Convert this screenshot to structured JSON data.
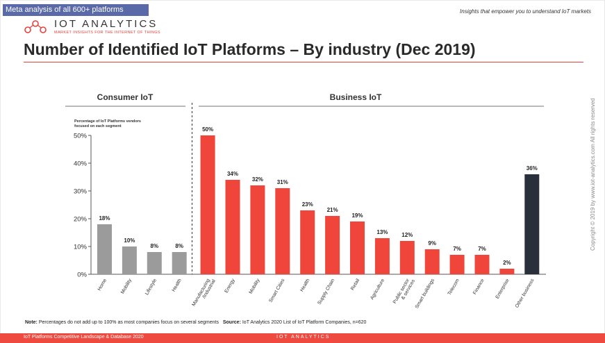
{
  "header": {
    "meta_tag": "Meta analysis of all 600+ platforms",
    "tagline": "Insights that empower you to understand IoT markets",
    "logo_word": "IOT ANALYTICS",
    "logo_sub": "MARKET INSIGHTS FOR THE INTERNET OF THINGS",
    "title": "Number of Identified IoT Platforms – By industry (Dec 2019)"
  },
  "side_copyright": "Copyright © 2019 by www.iot-analytics.com All rights reserved",
  "note": {
    "label": "Note:",
    "text": " Percentages do not add up to 100% as most companies focus on several segments",
    "source_label": "Source:",
    "source_text": " IoT Analytics 2020 List of IoT Platform Companies,  n=620"
  },
  "footer": {
    "text": "IoT Platforms Competitive Landscape & Database 2020",
    "logo": "IOT ANALYTICS"
  },
  "colors": {
    "consumer": "#9b9b9b",
    "business": "#f0453b",
    "other": "#2a2f3c",
    "accent": "#e8403c"
  },
  "chart_data": {
    "type": "bar",
    "title": "Number of Identified IoT Platforms – By industry (Dec 2019)",
    "ylabel": "Percentage of IoT Platforms vendors focused on each segment",
    "ylim": [
      0,
      50
    ],
    "yticks": [
      "0%",
      "10%",
      "20%",
      "30%",
      "40%",
      "50%"
    ],
    "groups": [
      {
        "name": "Consumer IoT",
        "categories": [
          "Home",
          "Mobility",
          "Lifestyle",
          "Health"
        ]
      },
      {
        "name": "Business IoT",
        "categories": [
          "Manufacturing /Industrial",
          "Energy",
          "Mobility",
          "Smart Cities",
          "Health",
          "Supply Chain",
          "Retail",
          "Agriculture",
          "Public sector & services",
          "Smart buildings",
          "Telecom",
          "Finance",
          "Enterprise",
          "Other business"
        ]
      }
    ],
    "categories": [
      "Home",
      "Mobility",
      "Lifestyle",
      "Health",
      "Manufacturing /Industrial",
      "Energy",
      "Mobility",
      "Smart Cities",
      "Health",
      "Supply Chain",
      "Retail",
      "Agriculture",
      "Public sector & services",
      "Smart buildings",
      "Telecom",
      "Finance",
      "Enterprise",
      "Other business"
    ],
    "values": [
      18,
      10,
      8,
      8,
      50,
      34,
      32,
      31,
      23,
      21,
      19,
      13,
      12,
      9,
      7,
      7,
      2,
      36
    ],
    "labels": [
      "18%",
      "10%",
      "8%",
      "8%",
      "50%",
      "34%",
      "32%",
      "31%",
      "23%",
      "21%",
      "19%",
      "13%",
      "12%",
      "9%",
      "7%",
      "7%",
      "2%",
      "36%"
    ],
    "segment": [
      "consumer",
      "consumer",
      "consumer",
      "consumer",
      "business",
      "business",
      "business",
      "business",
      "business",
      "business",
      "business",
      "business",
      "business",
      "business",
      "business",
      "business",
      "business",
      "other"
    ]
  }
}
